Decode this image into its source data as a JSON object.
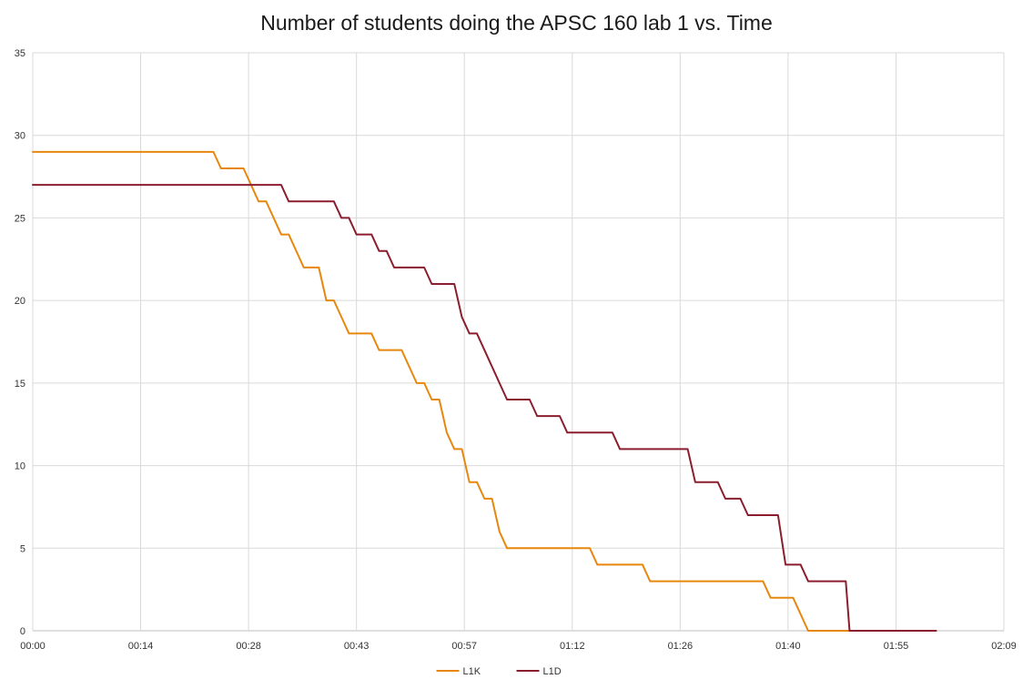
{
  "chart_data": {
    "type": "line",
    "title": "Number of students doing the APSC 160 lab 1 vs. Time",
    "xlabel": "",
    "ylabel": "",
    "x_unit": "minutes",
    "xlim": [
      0,
      129
    ],
    "ylim": [
      0,
      35
    ],
    "y_ticks": [
      0,
      5,
      10,
      15,
      20,
      25,
      30,
      35
    ],
    "x_ticks": [
      {
        "value": 0,
        "label": "00:00"
      },
      {
        "value": 14.33,
        "label": "00:14"
      },
      {
        "value": 28.67,
        "label": "00:28"
      },
      {
        "value": 43,
        "label": "00:43"
      },
      {
        "value": 57.33,
        "label": "00:57"
      },
      {
        "value": 71.67,
        "label": "01:12"
      },
      {
        "value": 86,
        "label": "01:26"
      },
      {
        "value": 100.33,
        "label": "01:40"
      },
      {
        "value": 114.67,
        "label": "01:55"
      },
      {
        "value": 129,
        "label": "02:09"
      }
    ],
    "grid": true,
    "legend_position": "bottom",
    "series": [
      {
        "name": "L1K",
        "color": "#E8870E",
        "points": [
          [
            0,
            29
          ],
          [
            24,
            29
          ],
          [
            25,
            28
          ],
          [
            28,
            28
          ],
          [
            30,
            26
          ],
          [
            31,
            26
          ],
          [
            33,
            24
          ],
          [
            34,
            24
          ],
          [
            36,
            22
          ],
          [
            38,
            22
          ],
          [
            39,
            20
          ],
          [
            40,
            20
          ],
          [
            42,
            18
          ],
          [
            45,
            18
          ],
          [
            46,
            17
          ],
          [
            49,
            17
          ],
          [
            51,
            15
          ],
          [
            52,
            15
          ],
          [
            53,
            14
          ],
          [
            54,
            14
          ],
          [
            55,
            12
          ],
          [
            56,
            11
          ],
          [
            57,
            11
          ],
          [
            58,
            9
          ],
          [
            59,
            9
          ],
          [
            60,
            8
          ],
          [
            61,
            8
          ],
          [
            62,
            6
          ],
          [
            63,
            5
          ],
          [
            74,
            5
          ],
          [
            75,
            4
          ],
          [
            81,
            4
          ],
          [
            82,
            3
          ],
          [
            97,
            3
          ],
          [
            98,
            2
          ],
          [
            101,
            2
          ],
          [
            103,
            0
          ],
          [
            109,
            0
          ]
        ]
      },
      {
        "name": "L1D",
        "color": "#8B1E2E",
        "points": [
          [
            0,
            27
          ],
          [
            33,
            27
          ],
          [
            34,
            26
          ],
          [
            40,
            26
          ],
          [
            41,
            25
          ],
          [
            42,
            25
          ],
          [
            43,
            24
          ],
          [
            45,
            24
          ],
          [
            46,
            23
          ],
          [
            47,
            23
          ],
          [
            48,
            22
          ],
          [
            52,
            22
          ],
          [
            53,
            21
          ],
          [
            56,
            21
          ],
          [
            57,
            19
          ],
          [
            58,
            18
          ],
          [
            59,
            18
          ],
          [
            60,
            17
          ],
          [
            62,
            15
          ],
          [
            63,
            14
          ],
          [
            66,
            14
          ],
          [
            67,
            13
          ],
          [
            70,
            13
          ],
          [
            71,
            12
          ],
          [
            77,
            12
          ],
          [
            78,
            11
          ],
          [
            87,
            11
          ],
          [
            88,
            9
          ],
          [
            91,
            9
          ],
          [
            92,
            8
          ],
          [
            94,
            8
          ],
          [
            95,
            7
          ],
          [
            99,
            7
          ],
          [
            100,
            4
          ],
          [
            102,
            4
          ],
          [
            103,
            3
          ],
          [
            108,
            3
          ],
          [
            108.5,
            0
          ],
          [
            120,
            0
          ]
        ]
      }
    ]
  }
}
